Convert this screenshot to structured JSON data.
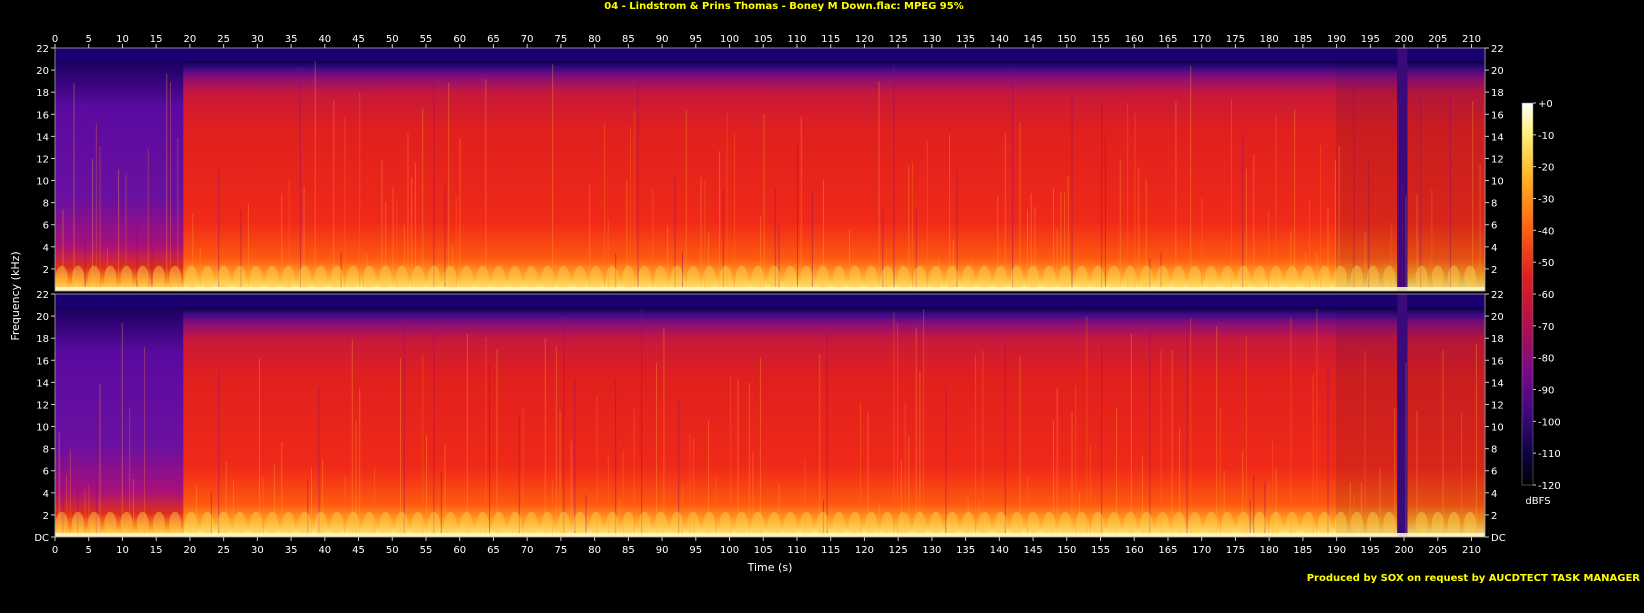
{
  "chart_data": {
    "type": "heatmap",
    "title": "04 - Lindstrom & Prins Thomas - Boney M Down.flac: MPEG 95%",
    "xlabel": "Time (s)",
    "ylabel": "Frequency (kHz)",
    "footer": "Produced by SOX on request by AUCDTECT TASK MANAGER",
    "colorbar_label": "dBFS",
    "xlim": [
      0,
      212
    ],
    "ylim_khz": [
      0,
      22
    ],
    "x_ticks": [
      0,
      5,
      10,
      15,
      20,
      25,
      30,
      35,
      40,
      45,
      50,
      55,
      60,
      65,
      70,
      75,
      80,
      85,
      90,
      95,
      100,
      105,
      110,
      115,
      120,
      125,
      130,
      135,
      140,
      145,
      150,
      155,
      160,
      165,
      170,
      175,
      180,
      185,
      190,
      195,
      200,
      205,
      210
    ],
    "y_ticks": [
      "DC",
      "2",
      "4",
      "6",
      "8",
      "10",
      "12",
      "14",
      "16",
      "18",
      "20",
      "22"
    ],
    "y_tick_values": [
      0,
      2,
      4,
      6,
      8,
      10,
      12,
      14,
      16,
      18,
      20,
      22
    ],
    "colorbar_ticks": [
      "+0",
      "-10",
      "-20",
      "-30",
      "-40",
      "-50",
      "-60",
      "-70",
      "-80",
      "-90",
      "-100",
      "-110",
      "-120"
    ],
    "colorbar_range_db": [
      -120,
      0
    ],
    "channels": 2,
    "segments": [
      {
        "t_start": 0,
        "t_end": 19,
        "cutoff_khz": 20.8,
        "level": "quiet intro"
      },
      {
        "t_start": 19,
        "t_end": 190,
        "cutoff_khz": 20.8,
        "level": "full"
      },
      {
        "t_start": 190,
        "t_end": 199,
        "cutoff_khz": 20.8,
        "level": "reduced"
      },
      {
        "t_start": 199,
        "t_end": 200.5,
        "cutoff_khz": 20.8,
        "level": "gap"
      },
      {
        "t_start": 200.5,
        "t_end": 212,
        "cutoff_khz": 20.8,
        "level": "reduced"
      }
    ]
  }
}
